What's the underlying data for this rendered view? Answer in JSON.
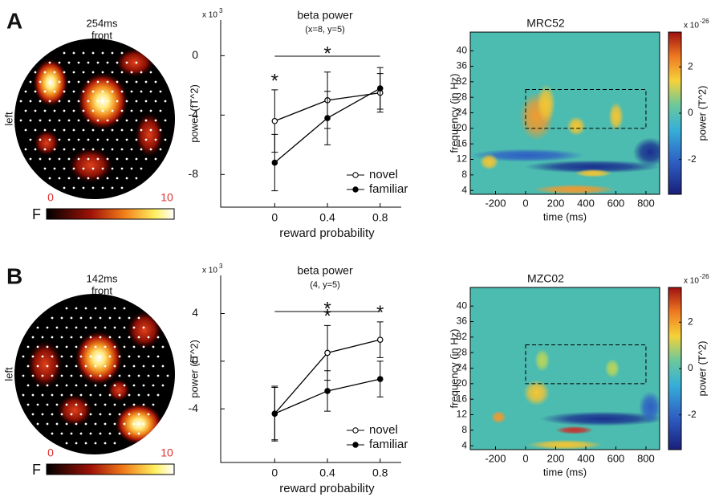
{
  "chart_data": [
    {
      "type": "topomap",
      "panel": "A",
      "title": "254ms",
      "subtitle": "front",
      "side_label": "left",
      "colorbar_label": "F",
      "clim": [
        0,
        10
      ],
      "cticks": [
        0,
        10
      ],
      "tick_color": "#e03030"
    },
    {
      "type": "line",
      "title": "beta power",
      "subtitle": "(x=8, y=5)",
      "y_scale_label": "x 10",
      "y_scale_exponent": "3",
      "xlabel": "reward probability",
      "ylabel": "power (fT^2)",
      "x": [
        0,
        0.4,
        0.8
      ],
      "xlim": [
        -0.41,
        0.96
      ],
      "xticks": [
        0,
        0.4,
        0.8
      ],
      "ylim": [
        -10.2,
        2.4
      ],
      "yticks": [
        0,
        -4,
        -8
      ],
      "series": [
        {
          "name": "novel",
          "color": "#000000",
          "marker_fill": "#ffffff",
          "values": [
            -4.4,
            -3.0,
            -2.5
          ],
          "errors": [
            2.1,
            1.9,
            1.3
          ]
        },
        {
          "name": "familiar",
          "color": "#000000",
          "marker_fill": "#000000",
          "values": [
            -7.2,
            -4.2,
            -2.2
          ],
          "errors": [
            1.9,
            1.8,
            1.4
          ]
        }
      ],
      "sig_markers": [
        "*",
        null,
        null
      ],
      "sig_bar_label": "*",
      "legend": "lower right"
    },
    {
      "type": "heatmap",
      "title": "MRC52",
      "xlabel": "time (ms)",
      "ylabel": "frequency (in Hz)",
      "xlim": [
        -368,
        891
      ],
      "xticks": [
        -200,
        0,
        200,
        400,
        600,
        800
      ],
      "ylim": [
        3,
        44.8
      ],
      "yticks": [
        4,
        8,
        12,
        16,
        20,
        24,
        28,
        32,
        36,
        40
      ],
      "box": {
        "x": [
          0,
          800
        ],
        "y": [
          20,
          30
        ]
      },
      "colorbar_scale_label": "x 10",
      "colorbar_scale_exponent": "-26",
      "colorbar_label": "power (T^2)",
      "clim": [
        -3.5,
        3.5
      ],
      "cticks": [
        2,
        0,
        -2
      ]
    },
    {
      "type": "topomap",
      "panel": "B",
      "title": "142ms",
      "subtitle": "front",
      "side_label": "left",
      "colorbar_label": "F",
      "clim": [
        0,
        10
      ],
      "cticks": [
        0,
        10
      ],
      "tick_color": "#e03030"
    },
    {
      "type": "line",
      "title": "beta power",
      "subtitle": "(4, y=5)",
      "y_scale_label": "x 10",
      "y_scale_exponent": "3",
      "xlabel": "reward probability",
      "ylabel": "power (fT^2)",
      "x": [
        0,
        0.4,
        0.8
      ],
      "xlim": [
        -0.41,
        0.96
      ],
      "xticks": [
        0,
        0.4,
        0.8
      ],
      "ylim": [
        -8.5,
        7.2
      ],
      "yticks": [
        4,
        0,
        -4
      ],
      "series": [
        {
          "name": "novel",
          "color": "#000000",
          "marker_fill": "#ffffff",
          "values": [
            -4.4,
            0.7,
            1.8
          ],
          "errors": [
            2.3,
            2.3,
            1.5
          ]
        },
        {
          "name": "familiar",
          "color": "#000000",
          "marker_fill": "#000000",
          "values": [
            -4.4,
            -2.5,
            -1.5
          ],
          "errors": [
            2.2,
            1.7,
            1.5
          ]
        }
      ],
      "sig_markers": [
        null,
        "*",
        "*"
      ],
      "sig_bar_label": "*",
      "legend": "lower right"
    },
    {
      "type": "heatmap",
      "title": "MZC02",
      "xlabel": "time (ms)",
      "ylabel": "frequency (in Hz)",
      "xlim": [
        -368,
        891
      ],
      "xticks": [
        -200,
        0,
        200,
        400,
        600,
        800
      ],
      "ylim": [
        3,
        44.8
      ],
      "yticks": [
        4,
        8,
        12,
        16,
        20,
        24,
        28,
        32,
        36,
        40
      ],
      "box": {
        "x": [
          0,
          800
        ],
        "y": [
          20,
          30
        ]
      },
      "colorbar_scale_label": "x 10",
      "colorbar_scale_exponent": "-26",
      "colorbar_label": "power (T^2)",
      "clim": [
        -3.5,
        3.5
      ],
      "cticks": [
        2,
        0,
        -2
      ]
    }
  ]
}
